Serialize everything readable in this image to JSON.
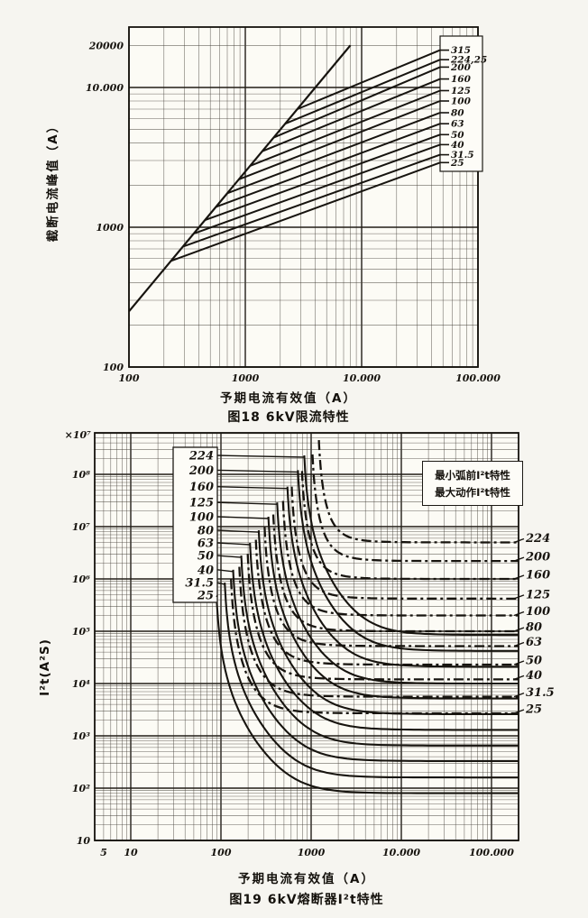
{
  "page": {
    "kind": "scanned technical figure page",
    "ink_color": "#17140f",
    "paper_color": "#f6f5f0",
    "plot_background": "#fcfbf5"
  },
  "chart_data": [
    {
      "type": "line",
      "title": "图18  6kV限流特性",
      "xlabel": "予期电流有效值（A）",
      "ylabel": "截断电流峰值（A）",
      "axis_scale": "log-log",
      "xlim": [
        100,
        100000
      ],
      "ylim": [
        100,
        20000
      ],
      "x_tick_values": [
        100,
        1000,
        10000,
        100000
      ],
      "x_tick_labels": [
        "100",
        "1000",
        "10.000",
        "100.000"
      ],
      "y_tick_values": [
        20000,
        10000,
        1000,
        100
      ],
      "y_tick_labels": [
        "20000",
        "10.000",
        "1000",
        "100"
      ],
      "grid": "log major+minor, both axes",
      "diagonal_reference": {
        "description": "unrestricted peak line, peak = 2.5 x prospective rms",
        "points": [
          [
            100,
            250
          ],
          [
            8000,
            20000
          ]
        ]
      },
      "series": [
        {
          "name": "315",
          "branch": [
            2800,
            7000
          ],
          "cutoff": [
            50000,
            18500
          ]
        },
        {
          "name": "224,25",
          "branch": [
            2200,
            5500
          ],
          "cutoff": [
            50000,
            15800
          ]
        },
        {
          "name": "200",
          "branch": [
            1750,
            4375
          ],
          "cutoff": [
            50000,
            14000
          ]
        },
        {
          "name": "160",
          "branch": [
            1400,
            3500
          ],
          "cutoff": [
            50000,
            11500
          ]
        },
        {
          "name": "125",
          "branch": [
            1100,
            2750
          ],
          "cutoff": [
            50000,
            9500
          ]
        },
        {
          "name": "100",
          "branch": [
            880,
            2200
          ],
          "cutoff": [
            50000,
            8000
          ]
        },
        {
          "name": "80",
          "branch": [
            700,
            1750
          ],
          "cutoff": [
            50000,
            6600
          ]
        },
        {
          "name": "63",
          "branch": [
            560,
            1400
          ],
          "cutoff": [
            50000,
            5500
          ]
        },
        {
          "name": "50",
          "branch": [
            450,
            1125
          ],
          "cutoff": [
            50000,
            4600
          ]
        },
        {
          "name": "40",
          "branch": [
            360,
            900
          ],
          "cutoff": [
            50000,
            3900
          ]
        },
        {
          "name": "31.5",
          "branch": [
            290,
            725
          ],
          "cutoff": [
            50000,
            3300
          ]
        },
        {
          "name": "25",
          "branch": [
            230,
            575
          ],
          "cutoff": [
            50000,
            2900
          ]
        }
      ]
    },
    {
      "type": "line",
      "title": "图19  6kV熔断器I²t特性",
      "xlabel": "予期电流有效值（A）",
      "ylabel": "I²t(A²S)",
      "top_scale_label": "×10⁷",
      "axis_scale": "log-log",
      "xlim": [
        4,
        200000
      ],
      "ylim": [
        10,
        600000000
      ],
      "x_tick_values": [
        5,
        10,
        100,
        1000,
        10000,
        100000
      ],
      "x_tick_labels": [
        "5",
        "10",
        "100",
        "1000",
        "10.000",
        "100.000"
      ],
      "y_tick_values": [
        100000000,
        10000000,
        1000000,
        100000,
        10000,
        1000,
        100,
        10
      ],
      "y_tick_labels": [
        "10⁸",
        "10⁷",
        "10⁶",
        "10⁵",
        "10⁴",
        "10³",
        "10²",
        "10"
      ],
      "grid": "log major+minor, both axes",
      "legend": [
        {
          "label": "最小弧前I²t特性",
          "style": "solid"
        },
        {
          "label": "最大动作I²t特性",
          "style": "dashdot"
        }
      ],
      "series": [
        {
          "rating": "224",
          "min_melting_current_A": 800,
          "start_i2t": 230000000,
          "min_prearcing_i2t": 85000,
          "max_operating_i2t": 5000000
        },
        {
          "rating": "200",
          "min_melting_current_A": 680,
          "start_i2t": 120000000,
          "min_prearcing_i2t": 42000,
          "max_operating_i2t": 2200000
        },
        {
          "rating": "160",
          "min_melting_current_A": 520,
          "start_i2t": 58000000,
          "min_prearcing_i2t": 21000,
          "max_operating_i2t": 1000000
        },
        {
          "rating": "125",
          "min_melting_current_A": 400,
          "start_i2t": 29000000,
          "min_prearcing_i2t": 10000,
          "max_operating_i2t": 420000
        },
        {
          "rating": "100",
          "min_melting_current_A": 320,
          "start_i2t": 15500000,
          "min_prearcing_i2t": 5200,
          "max_operating_i2t": 200000
        },
        {
          "rating": "80",
          "min_melting_current_A": 250,
          "start_i2t": 8500000,
          "min_prearcing_i2t": 2600,
          "max_operating_i2t": 100000
        },
        {
          "rating": "63",
          "min_melting_current_A": 200,
          "start_i2t": 4900000,
          "min_prearcing_i2t": 1300,
          "max_operating_i2t": 52000
        },
        {
          "rating": "50",
          "min_melting_current_A": 160,
          "start_i2t": 2800000,
          "min_prearcing_i2t": 650,
          "max_operating_i2t": 23000
        },
        {
          "rating": "40",
          "min_melting_current_A": 130,
          "start_i2t": 1500000,
          "min_prearcing_i2t": 330,
          "max_operating_i2t": 12000
        },
        {
          "rating": "31.5",
          "min_melting_current_A": 105,
          "start_i2t": 850000,
          "min_prearcing_i2t": 160,
          "max_operating_i2t": 5600
        },
        {
          "rating": "25",
          "min_melting_current_A": 85,
          "start_i2t": 490000,
          "min_prearcing_i2t": 80,
          "max_operating_i2t": 2700
        }
      ]
    }
  ]
}
